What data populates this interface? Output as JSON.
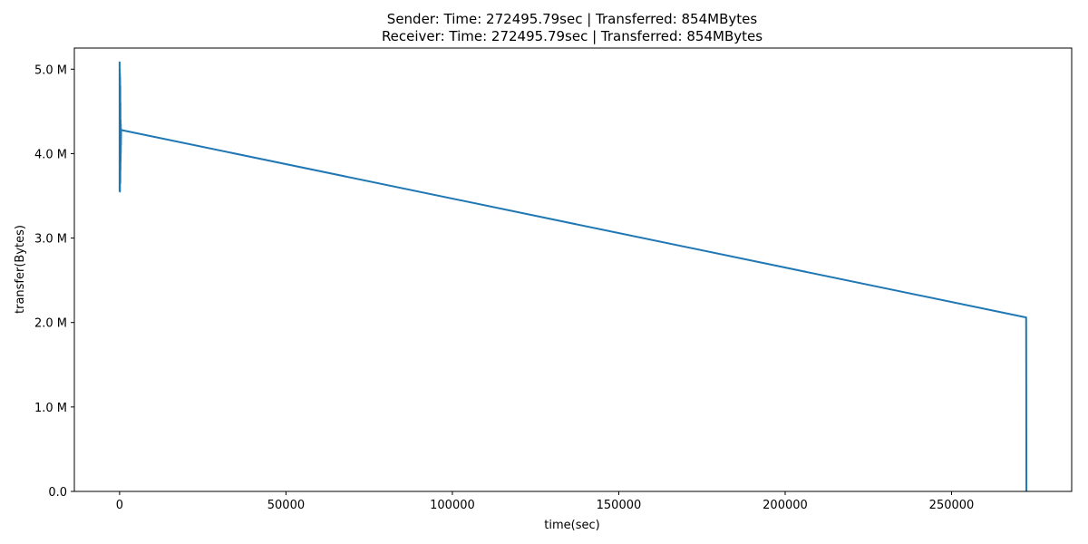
{
  "chart_data": {
    "type": "line",
    "title_line1": "Sender: Time: 272495.79sec | Transferred: 854MBytes",
    "title_line2": "Receiver: Time: 272495.79sec | Transferred: 854MBytes",
    "xlabel": "time(sec)",
    "ylabel": "transfer(Bytes)",
    "xlim": [
      -13600,
      286100
    ],
    "ylim": [
      0,
      5250000
    ],
    "xticks": [
      0,
      50000,
      100000,
      150000,
      200000,
      250000
    ],
    "xtick_labels": [
      "0",
      "50000",
      "100000",
      "150000",
      "200000",
      "250000"
    ],
    "yticks": [
      0,
      1000000,
      2000000,
      3000000,
      4000000,
      5000000
    ],
    "ytick_labels": [
      "0.0",
      "1.0 M",
      "2.0 M",
      "3.0 M",
      "4.0 M",
      "5.0 M"
    ],
    "grid": false,
    "series": [
      {
        "color": "#1f77b4",
        "x": [
          0,
          0,
          50,
          50,
          100,
          100,
          150,
          150,
          200,
          200,
          250,
          250,
          300,
          300,
          350,
          350,
          400,
          400,
          450,
          272420,
          272495.79
        ],
        "y": [
          5090000,
          3560000,
          5000000,
          3600000,
          4950000,
          3550000,
          4900000,
          3700000,
          4800000,
          3650000,
          4600000,
          3800000,
          4400000,
          3900000,
          4350000,
          4000000,
          4300000,
          4100000,
          4280000,
          2060000,
          0
        ]
      }
    ]
  }
}
